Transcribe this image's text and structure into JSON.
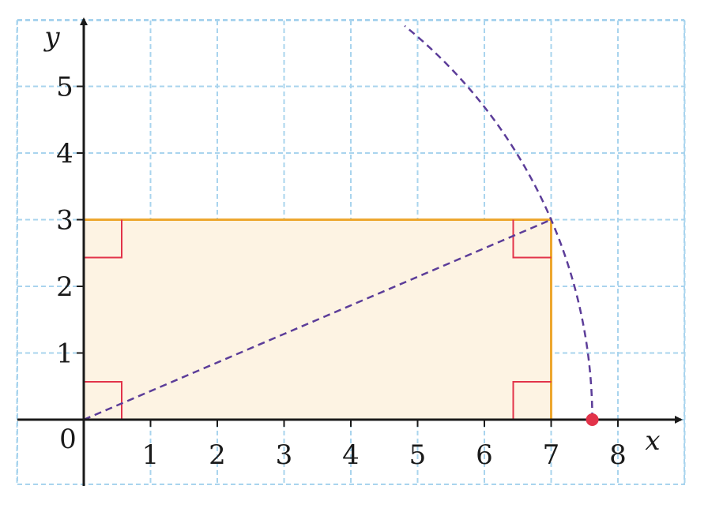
{
  "chart_data": {
    "type": "diagram",
    "xlabel": "x",
    "ylabel": "y",
    "origin_label": "0",
    "xlim": [
      -1,
      9
    ],
    "ylim": [
      -1,
      6
    ],
    "x_ticks": [
      1,
      2,
      3,
      4,
      5,
      6,
      7,
      8
    ],
    "y_ticks": [
      1,
      2,
      3,
      4,
      5
    ],
    "grid": true,
    "rectangle": {
      "x": [
        0,
        7
      ],
      "y": [
        0,
        3
      ]
    },
    "right_angle_marks_at": [
      [
        0,
        0
      ],
      [
        7,
        0
      ],
      [
        7,
        3
      ],
      [
        0,
        3
      ]
    ],
    "diagonal": {
      "from": [
        0,
        0
      ],
      "to": [
        7,
        3
      ],
      "style": "dashed"
    },
    "arc": {
      "center": [
        0,
        0
      ],
      "radius": 7.616,
      "from": [
        7.616,
        0
      ],
      "to": [
        4.8,
        5.9
      ],
      "style": "dashed"
    },
    "point": {
      "x": 7.616,
      "y": 0
    }
  },
  "colors": {
    "grid": "#a9d4ee",
    "axis": "#1a1a1a",
    "rect_fill": "#fdf3e3",
    "rect_stroke": "#eda72e",
    "right_angle": "#e2334a",
    "dashed": "#5c3d99",
    "point": "#e2334a"
  }
}
